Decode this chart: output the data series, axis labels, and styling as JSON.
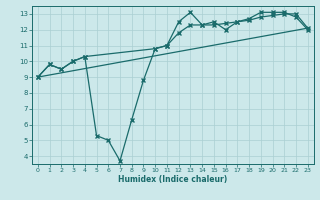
{
  "xlabel": "Humidex (Indice chaleur)",
  "background_color": "#cce8ea",
  "grid_color": "#aacfd2",
  "line_color": "#1a6b6b",
  "xlim": [
    -0.5,
    23.5
  ],
  "ylim": [
    3.5,
    13.5
  ],
  "xticks": [
    0,
    1,
    2,
    3,
    4,
    5,
    6,
    7,
    8,
    9,
    10,
    11,
    12,
    13,
    14,
    15,
    16,
    17,
    18,
    19,
    20,
    21,
    22,
    23
  ],
  "yticks": [
    4,
    5,
    6,
    7,
    8,
    9,
    10,
    11,
    12,
    13
  ],
  "line1_x": [
    0,
    1,
    2,
    3,
    4,
    5,
    6,
    7,
    8,
    9,
    10,
    11,
    12,
    13,
    14,
    15,
    16,
    17,
    18,
    19,
    20,
    21,
    22,
    23
  ],
  "line1_y": [
    9.0,
    9.8,
    9.5,
    10.0,
    10.3,
    5.3,
    5.0,
    3.7,
    6.3,
    8.8,
    10.8,
    11.0,
    12.5,
    13.1,
    12.3,
    12.5,
    12.0,
    12.5,
    12.7,
    13.1,
    13.1,
    13.1,
    12.8,
    12.0
  ],
  "line2_x": [
    0,
    1,
    2,
    3,
    4,
    10,
    11,
    12,
    13,
    14,
    15,
    16,
    17,
    18,
    19,
    20,
    21,
    22,
    23
  ],
  "line2_y": [
    9.0,
    9.8,
    9.5,
    10.0,
    10.3,
    10.8,
    11.0,
    11.8,
    12.3,
    12.3,
    12.3,
    12.4,
    12.5,
    12.6,
    12.8,
    12.9,
    13.0,
    13.0,
    12.1
  ],
  "line3_x": [
    0,
    23
  ],
  "line3_y": [
    9.0,
    12.1
  ],
  "marker": "x",
  "linewidth": 0.9,
  "markersize": 3
}
